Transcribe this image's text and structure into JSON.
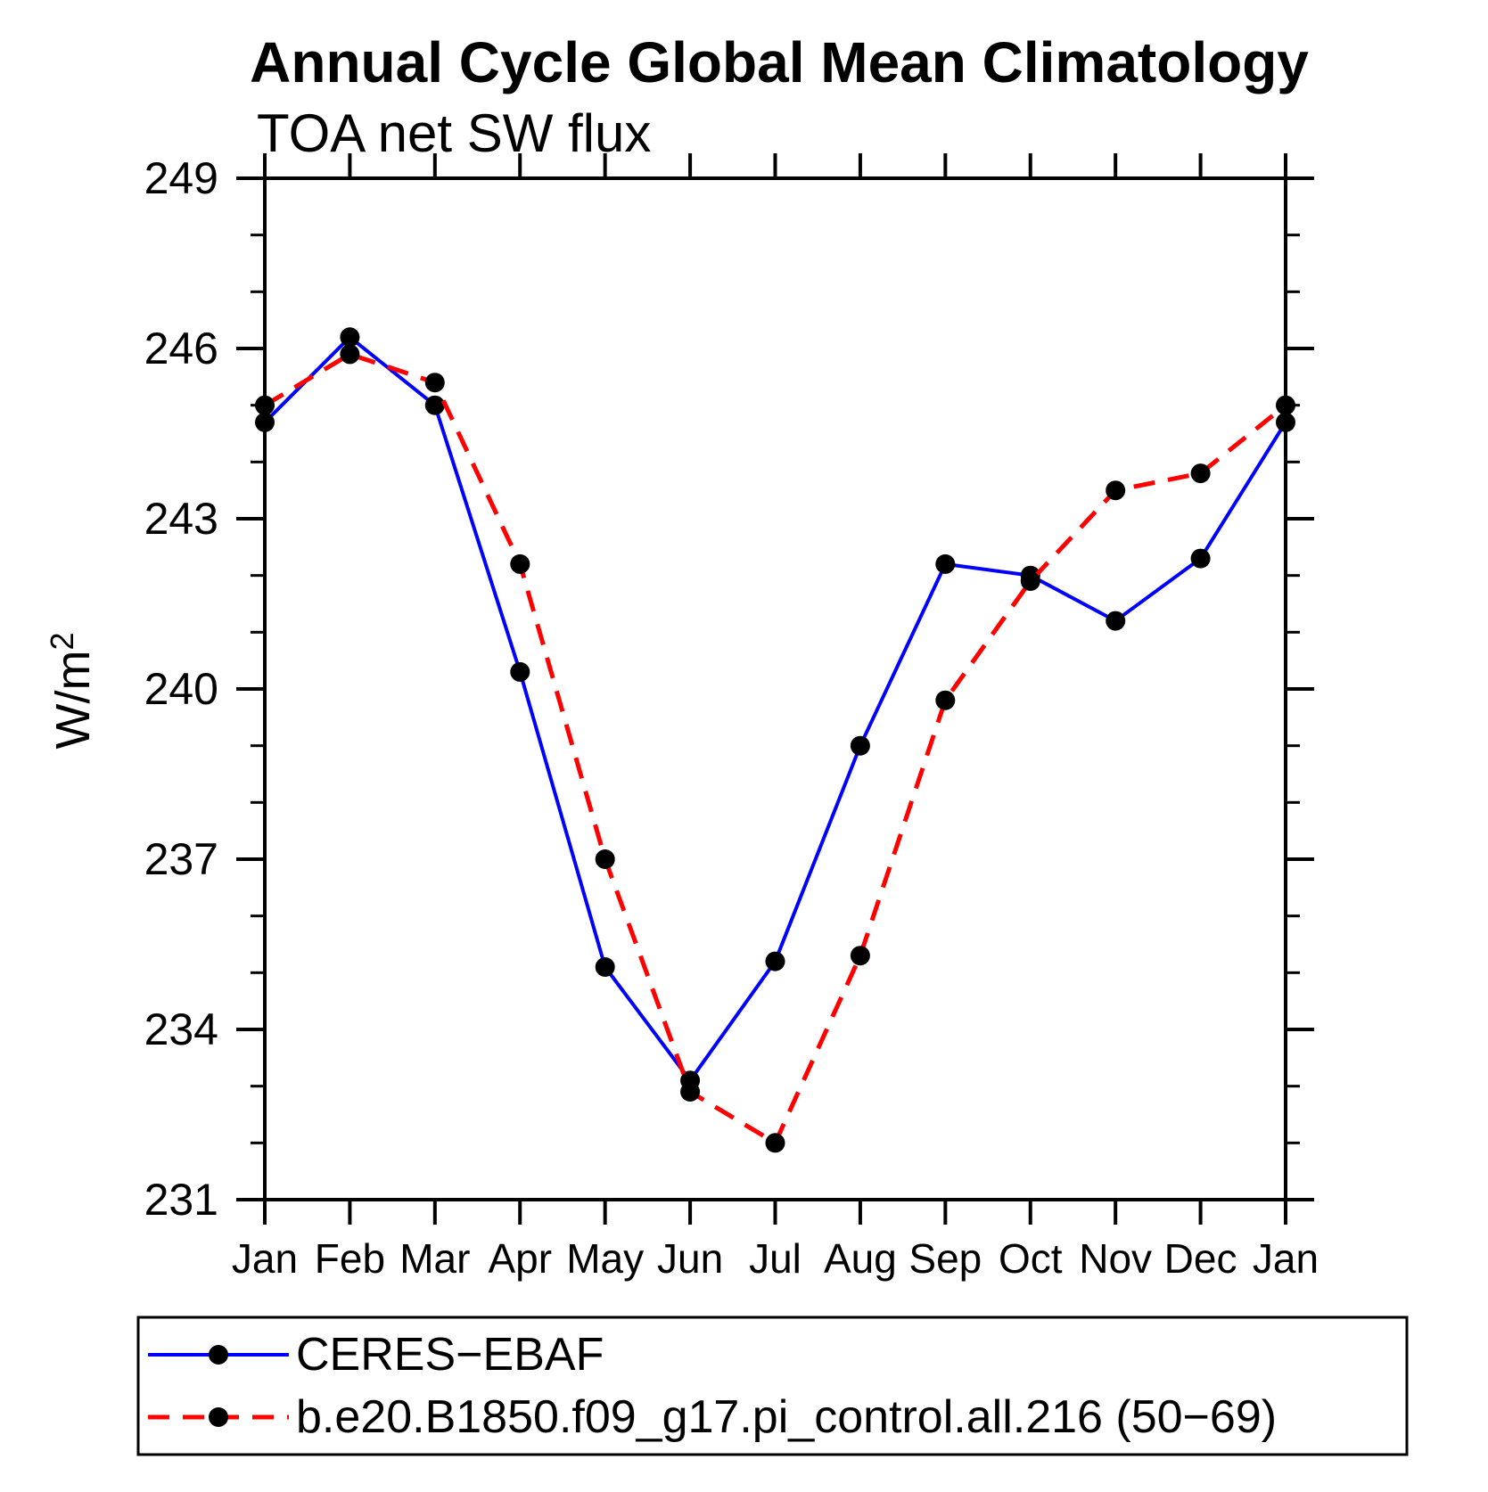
{
  "page": {
    "background": "#ffffff"
  },
  "chart_data": {
    "type": "line",
    "title": "Annual Cycle Global Mean Climatology",
    "subtitle": "TOA net SW flux",
    "ylabel": "W/m²",
    "ylabel_base": "W/m",
    "ylabel_superscript": "2",
    "x_categories": [
      "Jan",
      "Feb",
      "Mar",
      "Apr",
      "May",
      "Jun",
      "Jul",
      "Aug",
      "Sep",
      "Oct",
      "Nov",
      "Dec",
      "Jan"
    ],
    "ylim": [
      231,
      249
    ],
    "y_major_ticks": [
      231,
      234,
      237,
      240,
      243,
      246,
      249
    ],
    "y_minor_tick_step": 1,
    "grid": false,
    "legend_position": "bottom-left-box",
    "frame_color": "#000000",
    "series": [
      {
        "name": "CERES−EBAF",
        "line_color": "#0000ff",
        "line_style": "solid",
        "marker": "filled-circle",
        "marker_color": "#000000",
        "values": [
          244.7,
          246.2,
          245.0,
          240.3,
          235.1,
          233.1,
          235.2,
          239.0,
          242.2,
          242.0,
          241.2,
          242.3,
          244.7
        ]
      },
      {
        "name": "b.e20.B1850.f09_g17.pi_control.all.216 (50−69)",
        "line_color": "#ff0000",
        "line_style": "dashed",
        "marker": "filled-circle",
        "marker_color": "#000000",
        "values": [
          245.0,
          245.9,
          245.4,
          242.2,
          237.0,
          232.9,
          232.0,
          235.3,
          239.8,
          241.9,
          243.5,
          243.8,
          245.0
        ]
      }
    ]
  }
}
